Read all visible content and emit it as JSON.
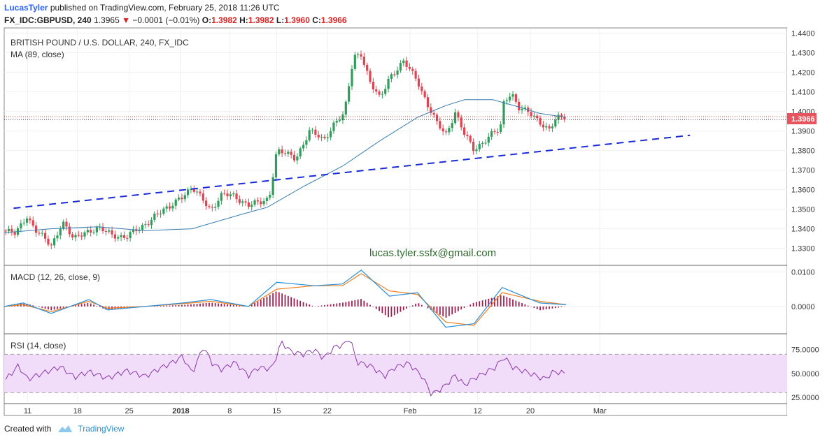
{
  "header": {
    "author": "LucasTyler",
    "published_text": "published on TradingView.com, February 25, 2018 11:26 UTC",
    "symbol": "FX_IDC:GBPUSD, 240",
    "last": "1.3965",
    "change_arrow": "▼",
    "change": "−0.0001 (−0.01%)",
    "o_label": "O:",
    "o_value": "1.3982",
    "h_label": "H:",
    "h_value": "1.3982",
    "l_label": "L:",
    "l_value": "1.3960",
    "c_label": "C:",
    "c_value": "1.3966"
  },
  "footer": {
    "created_with": "Created with",
    "brand": "TradingView"
  },
  "watermark": "lucas.tyler.ssfx@gmail.com",
  "price_label": "1.3966",
  "colors": {
    "up": "#2e9e5a",
    "down": "#e04451",
    "ma": "#3a7fb0",
    "trend": "#1a2bd6",
    "macd": "#2a8fd8",
    "signal": "#f07d1a",
    "hist": "#a01c4c",
    "rsi": "#8a3aa8",
    "rsi_band": "#f1dcfa",
    "price_box": "#e8545d"
  },
  "chart_data": [
    {
      "type": "candlestick",
      "title": "BRITISH POUND / U.S. DOLLAR, 240, FX_IDC",
      "indicator": "MA (89, close)",
      "ylim": [
        1.322,
        1.442
      ],
      "y_ticks": [
        "1.4400",
        "1.4300",
        "1.4200",
        "1.4100",
        "1.4000",
        "1.3900",
        "1.3800",
        "1.3700",
        "1.3600",
        "1.3500",
        "1.3400",
        "1.3300"
      ],
      "x_ticks": [
        "11",
        "18",
        "25",
        "2018",
        "8",
        "15",
        "22",
        "Feb",
        "12",
        "20",
        "Mar"
      ],
      "x_tick_pos": [
        0.025,
        0.078,
        0.133,
        0.188,
        0.24,
        0.29,
        0.344,
        0.432,
        0.504,
        0.56,
        0.634
      ],
      "close_path": [
        [
          0.0,
          1.339
        ],
        [
          0.012,
          1.337
        ],
        [
          0.024,
          1.347
        ],
        [
          0.034,
          1.339
        ],
        [
          0.05,
          1.331
        ],
        [
          0.062,
          1.344
        ],
        [
          0.074,
          1.334
        ],
        [
          0.087,
          1.339
        ],
        [
          0.1,
          1.34
        ],
        [
          0.114,
          1.337
        ],
        [
          0.13,
          1.336
        ],
        [
          0.145,
          1.34
        ],
        [
          0.16,
          1.347
        ],
        [
          0.175,
          1.35
        ],
        [
          0.185,
          1.356
        ],
        [
          0.2,
          1.36
        ],
        [
          0.212,
          1.355
        ],
        [
          0.22,
          1.35
        ],
        [
          0.232,
          1.357
        ],
        [
          0.245,
          1.357
        ],
        [
          0.26,
          1.352
        ],
        [
          0.272,
          1.353
        ],
        [
          0.282,
          1.356
        ],
        [
          0.29,
          1.38
        ],
        [
          0.31,
          1.376
        ],
        [
          0.325,
          1.39
        ],
        [
          0.34,
          1.385
        ],
        [
          0.352,
          1.395
        ],
        [
          0.362,
          1.398
        ],
        [
          0.372,
          1.428
        ],
        [
          0.38,
          1.43
        ],
        [
          0.39,
          1.414
        ],
        [
          0.4,
          1.406
        ],
        [
          0.41,
          1.418
        ],
        [
          0.425,
          1.425
        ],
        [
          0.44,
          1.416
        ],
        [
          0.452,
          1.402
        ],
        [
          0.46,
          1.394
        ],
        [
          0.47,
          1.388
        ],
        [
          0.48,
          1.4
        ],
        [
          0.49,
          1.388
        ],
        [
          0.5,
          1.38
        ],
        [
          0.51,
          1.385
        ],
        [
          0.52,
          1.389
        ],
        [
          0.528,
          1.39
        ],
        [
          0.532,
          1.405
        ],
        [
          0.54,
          1.41
        ],
        [
          0.548,
          1.402
        ],
        [
          0.558,
          1.399
        ],
        [
          0.57,
          1.395
        ],
        [
          0.58,
          1.391
        ],
        [
          0.588,
          1.396
        ],
        [
          0.598,
          1.397
        ]
      ],
      "ma_path": [
        [
          0.0,
          1.338
        ],
        [
          0.05,
          1.34
        ],
        [
          0.1,
          1.341
        ],
        [
          0.15,
          1.339
        ],
        [
          0.2,
          1.34
        ],
        [
          0.25,
          1.347
        ],
        [
          0.28,
          1.351
        ],
        [
          0.32,
          1.362
        ],
        [
          0.36,
          1.372
        ],
        [
          0.4,
          1.385
        ],
        [
          0.44,
          1.397
        ],
        [
          0.47,
          1.403
        ],
        [
          0.49,
          1.406
        ],
        [
          0.52,
          1.406
        ],
        [
          0.55,
          1.402
        ],
        [
          0.57,
          1.399
        ],
        [
          0.598,
          1.397
        ]
      ],
      "trendline": [
        [
          0.01,
          1.3505
        ],
        [
          0.73,
          1.3878
        ]
      ]
    },
    {
      "type": "line",
      "title": "MACD (12, 26, close, 9)",
      "ylim": [
        -0.0075,
        0.0115
      ],
      "y_ticks": [
        "0.0100",
        "0.0000"
      ],
      "series": [
        {
          "values": [
            [
              0.0,
              0.0
            ],
            [
              0.02,
              0.001
            ],
            [
              0.05,
              -0.002
            ],
            [
              0.07,
              0.0
            ],
            [
              0.09,
              0.002
            ],
            [
              0.11,
              -0.001
            ],
            [
              0.15,
              0.0
            ],
            [
              0.19,
              0.001
            ],
            [
              0.22,
              0.002
            ],
            [
              0.26,
              0.0
            ],
            [
              0.29,
              0.007
            ],
            [
              0.33,
              0.006
            ],
            [
              0.36,
              0.0065
            ],
            [
              0.38,
              0.0105
            ],
            [
              0.41,
              0.003
            ],
            [
              0.44,
              0.004
            ],
            [
              0.47,
              -0.006
            ],
            [
              0.5,
              -0.005
            ],
            [
              0.53,
              0.0055
            ],
            [
              0.57,
              0.001
            ],
            [
              0.598,
              0.0005
            ]
          ]
        },
        {
          "values": [
            [
              0.0,
              0.0
            ],
            [
              0.02,
              0.0005
            ],
            [
              0.05,
              -0.0015
            ],
            [
              0.07,
              0.0
            ],
            [
              0.09,
              0.0015
            ],
            [
              0.11,
              -0.0005
            ],
            [
              0.15,
              0.0
            ],
            [
              0.19,
              0.0008
            ],
            [
              0.22,
              0.0015
            ],
            [
              0.26,
              0.0
            ],
            [
              0.29,
              0.005
            ],
            [
              0.33,
              0.006
            ],
            [
              0.36,
              0.006
            ],
            [
              0.38,
              0.0095
            ],
            [
              0.41,
              0.0045
            ],
            [
              0.44,
              0.0035
            ],
            [
              0.47,
              -0.0045
            ],
            [
              0.5,
              -0.0055
            ],
            [
              0.53,
              0.004
            ],
            [
              0.57,
              0.0015
            ],
            [
              0.598,
              0.0005
            ]
          ]
        }
      ]
    },
    {
      "type": "line",
      "title": "RSI (14, close)",
      "ylim": [
        20,
        90
      ],
      "band": [
        30,
        70
      ],
      "y_ticks": [
        "75.0000",
        "50.0000",
        "25.0000"
      ],
      "series": [
        {
          "values": [
            [
              0.0,
              42
            ],
            [
              0.015,
              58
            ],
            [
              0.025,
              44
            ],
            [
              0.04,
              50
            ],
            [
              0.06,
              57
            ],
            [
              0.075,
              46
            ],
            [
              0.09,
              52
            ],
            [
              0.11,
              45
            ],
            [
              0.13,
              53
            ],
            [
              0.15,
              47
            ],
            [
              0.165,
              55
            ],
            [
              0.18,
              62
            ],
            [
              0.19,
              68
            ],
            [
              0.2,
              50
            ],
            [
              0.212,
              78
            ],
            [
              0.222,
              60
            ],
            [
              0.232,
              54
            ],
            [
              0.245,
              62
            ],
            [
              0.26,
              48
            ],
            [
              0.27,
              56
            ],
            [
              0.285,
              55
            ],
            [
              0.295,
              83
            ],
            [
              0.305,
              73
            ],
            [
              0.318,
              70
            ],
            [
              0.33,
              75
            ],
            [
              0.34,
              66
            ],
            [
              0.352,
              78
            ],
            [
              0.362,
              80
            ],
            [
              0.368,
              88
            ],
            [
              0.375,
              62
            ],
            [
              0.39,
              58
            ],
            [
              0.405,
              47
            ],
            [
              0.415,
              56
            ],
            [
              0.43,
              61
            ],
            [
              0.445,
              47
            ],
            [
              0.455,
              28
            ],
            [
              0.468,
              36
            ],
            [
              0.48,
              48
            ],
            [
              0.49,
              38
            ],
            [
              0.5,
              45
            ],
            [
              0.51,
              50
            ],
            [
              0.522,
              56
            ],
            [
              0.532,
              67
            ],
            [
              0.542,
              56
            ],
            [
              0.555,
              52
            ],
            [
              0.565,
              48
            ],
            [
              0.575,
              44
            ],
            [
              0.585,
              52
            ],
            [
              0.598,
              50
            ]
          ]
        }
      ]
    }
  ]
}
